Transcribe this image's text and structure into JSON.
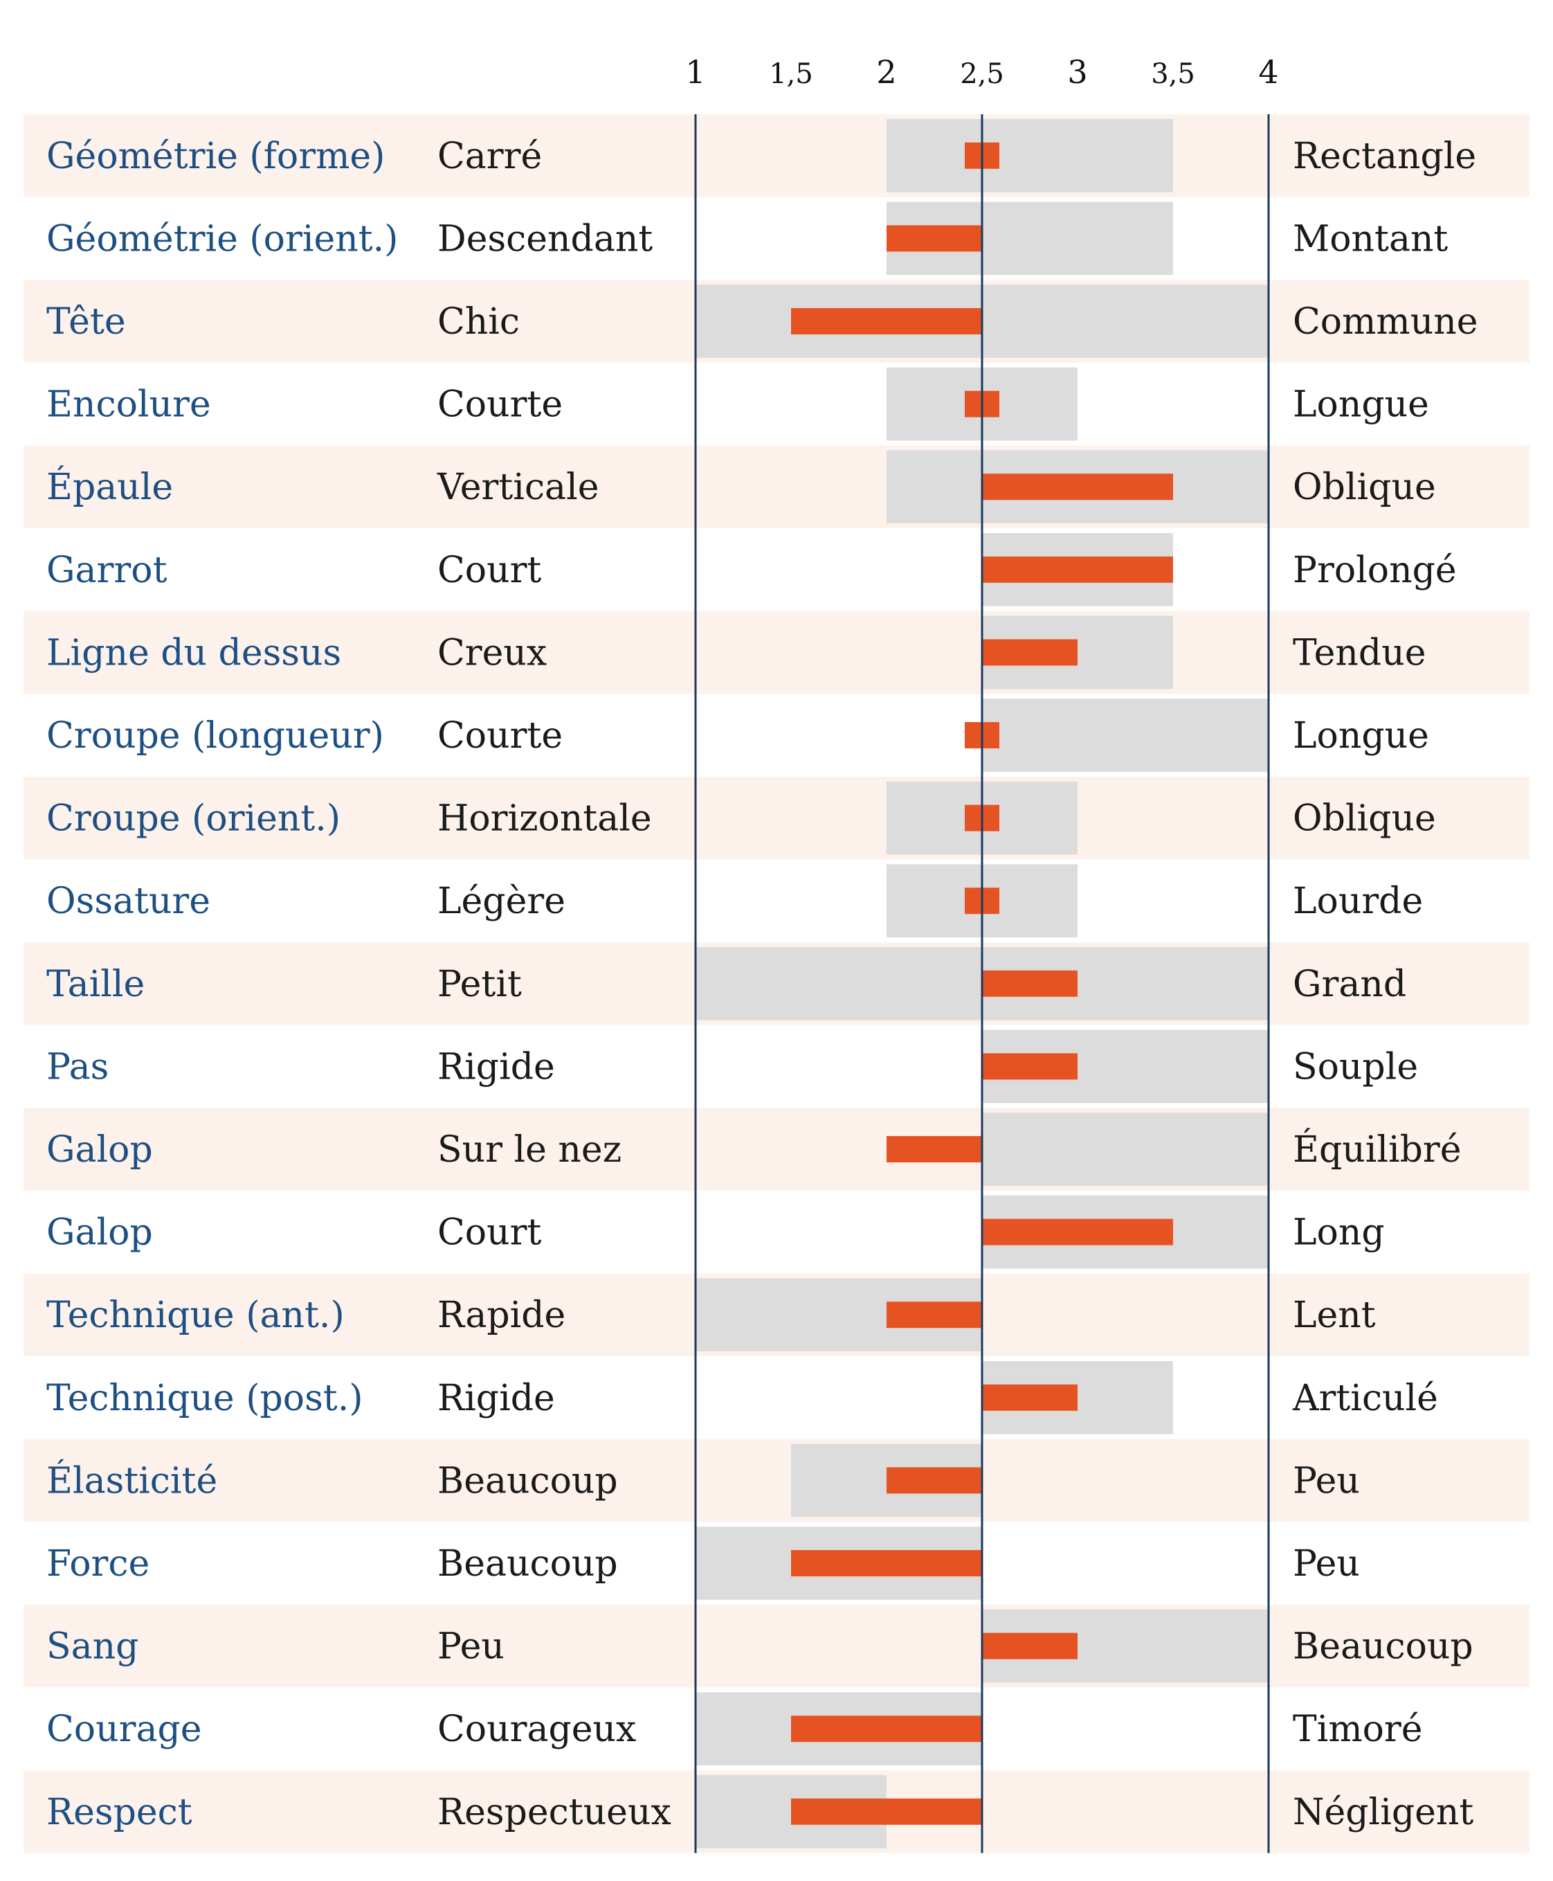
{
  "chart_data": {
    "type": "bar",
    "title": "",
    "xlim": [
      1,
      4
    ],
    "center": 2.5,
    "x_ticks": [
      "1",
      "1,5",
      "2",
      "2,5",
      "3",
      "3,5",
      "4"
    ],
    "x_tick_values": [
      1,
      1.5,
      2,
      2.5,
      3,
      3.5,
      4
    ],
    "rows": [
      {
        "trait": "Géométrie (forme)",
        "left": "Carré",
        "right": "Rectangle",
        "range": [
          2,
          3.5
        ],
        "value": 2.5
      },
      {
        "trait": "Géométrie (orient.)",
        "left": "Descendant",
        "right": "Montant",
        "range": [
          2,
          3.5
        ],
        "value": 2
      },
      {
        "trait": "Tête",
        "left": "Chic",
        "right": "Commune",
        "range": [
          1,
          4
        ],
        "value": 1.5
      },
      {
        "trait": "Encolure",
        "left": "Courte",
        "right": "Longue",
        "range": [
          2,
          3
        ],
        "value": 2.5
      },
      {
        "trait": "Épaule",
        "left": "Verticale",
        "right": "Oblique",
        "range": [
          2,
          4
        ],
        "value": 3.5
      },
      {
        "trait": "Garrot",
        "left": "Court",
        "right": "Prolongé",
        "range": [
          2.5,
          3.5
        ],
        "value": 3.5
      },
      {
        "trait": "Ligne du dessus",
        "left": "Creux",
        "right": "Tendue",
        "range": [
          2.5,
          3.5
        ],
        "value": 3
      },
      {
        "trait": "Croupe (longueur)",
        "left": "Courte",
        "right": "Longue",
        "range": [
          2.5,
          4
        ],
        "value": 2.5
      },
      {
        "trait": "Croupe (orient.)",
        "left": "Horizontale",
        "right": "Oblique",
        "range": [
          2,
          3
        ],
        "value": 2.5
      },
      {
        "trait": "Ossature",
        "left": "Légère",
        "right": "Lourde",
        "range": [
          2,
          3
        ],
        "value": 2.5
      },
      {
        "trait": "Taille",
        "left": "Petit",
        "right": "Grand",
        "range": [
          1,
          4
        ],
        "value": 3
      },
      {
        "trait": "Pas",
        "left": "Rigide",
        "right": "Souple",
        "range": [
          2.5,
          4
        ],
        "value": 3
      },
      {
        "trait": "Galop",
        "left": "Sur le nez",
        "right": "Équilibré",
        "range": [
          2.5,
          4
        ],
        "value": 2
      },
      {
        "trait": "Galop",
        "left": "Court",
        "right": "Long",
        "range": [
          2.5,
          4
        ],
        "value": 3.5
      },
      {
        "trait": "Technique (ant.)",
        "left": "Rapide",
        "right": "Lent",
        "range": [
          1,
          2.5
        ],
        "value": 2
      },
      {
        "trait": "Technique (post.)",
        "left": "Rigide",
        "right": "Articulé",
        "range": [
          2.5,
          3.5
        ],
        "value": 3
      },
      {
        "trait": "Élasticité",
        "left": "Beaucoup",
        "right": "Peu",
        "range": [
          1.5,
          2.5
        ],
        "value": 2
      },
      {
        "trait": "Force",
        "left": "Beaucoup",
        "right": "Peu",
        "range": [
          1,
          2.5
        ],
        "value": 1.5
      },
      {
        "trait": "Sang",
        "left": "Peu",
        "right": "Beaucoup",
        "range": [
          2.5,
          4
        ],
        "value": 3
      },
      {
        "trait": "Courage",
        "left": "Courageux",
        "right": "Timoré",
        "range": [
          1,
          2.5
        ],
        "value": 1.5
      },
      {
        "trait": "Respect",
        "left": "Respectueux",
        "right": "Négligent",
        "range": [
          1,
          2
        ],
        "value": 1.5
      }
    ]
  },
  "colors": {
    "row_tint": "#fdf1ec",
    "range_fill": "#dcdcdc",
    "bar_fill": "#e55323",
    "axis_line": "#1b3a5c",
    "trait_text": "#1d4f82",
    "side_text": "#1a1a1a"
  }
}
